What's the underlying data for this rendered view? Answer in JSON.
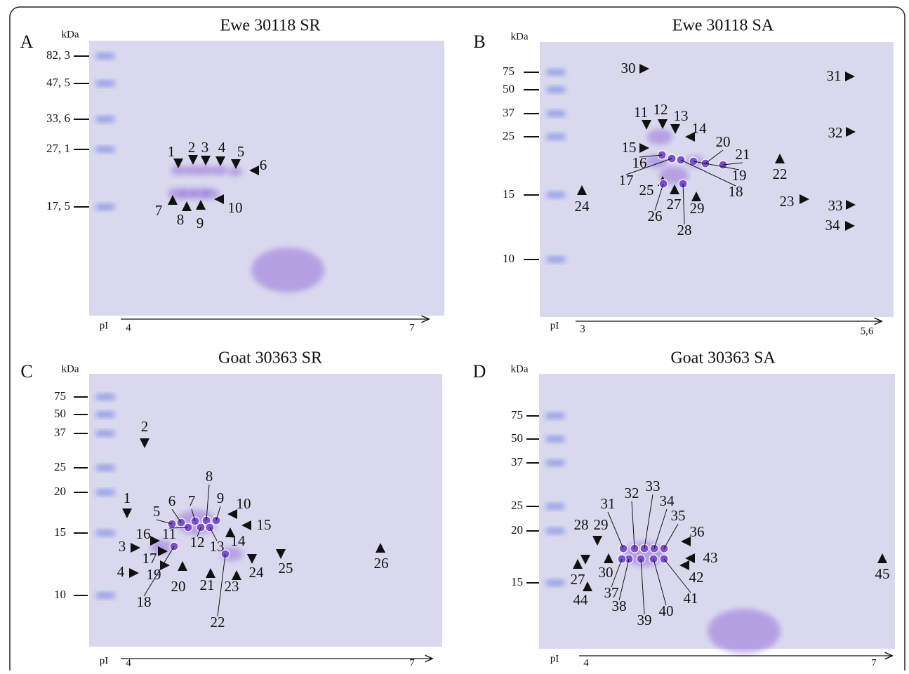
{
  "panels": [
    {
      "letter": "A",
      "title": "Ewe 30118 SR",
      "unit": "kDa",
      "mw": [
        "82, 3",
        "47, 5",
        "33, 6",
        "27, 1",
        "17, 5"
      ],
      "pi_label": "pI",
      "pi_start": "4",
      "pi_end": "7",
      "spots": [
        "1",
        "2",
        "3",
        "4",
        "5",
        "6",
        "7",
        "8",
        "9",
        "10"
      ]
    },
    {
      "letter": "B",
      "title": "Ewe 30118 SA",
      "unit": "kDa",
      "mw": [
        "75",
        "50",
        "37",
        "25",
        "15",
        "10"
      ],
      "pi_label": "pI",
      "pi_start": "3",
      "pi_end": "5,6",
      "spots": [
        "30",
        "11",
        "12",
        "13",
        "14",
        "15",
        "16",
        "17",
        "20",
        "21",
        "19",
        "18",
        "22",
        "25",
        "26",
        "27",
        "28",
        "29",
        "23",
        "24",
        "31",
        "32",
        "33",
        "34"
      ]
    },
    {
      "letter": "C",
      "title": "Goat 30363 SR",
      "unit": "kDa",
      "mw": [
        "75",
        "50",
        "37",
        "25",
        "20",
        "15",
        "10"
      ],
      "pi_label": "pI",
      "pi_start": "4",
      "pi_end": "7",
      "spots": [
        "2",
        "1",
        "5",
        "6",
        "7",
        "8",
        "9",
        "10",
        "15",
        "11",
        "12",
        "13",
        "14",
        "16",
        "3",
        "17",
        "4",
        "19",
        "18",
        "20",
        "21",
        "23",
        "22",
        "24",
        "25",
        "26"
      ]
    },
    {
      "letter": "D",
      "title": "Goat 30363 SA",
      "unit": "kDa",
      "mw": [
        "75",
        "50",
        "37",
        "25",
        "20",
        "15"
      ],
      "pi_label": "pI",
      "pi_start": "4",
      "pi_end": "7",
      "spots": [
        "28",
        "29",
        "27",
        "44",
        "30",
        "31",
        "32",
        "33",
        "34",
        "35",
        "36",
        "43",
        "42",
        "41",
        "40",
        "39",
        "38",
        "37",
        "45"
      ]
    }
  ]
}
